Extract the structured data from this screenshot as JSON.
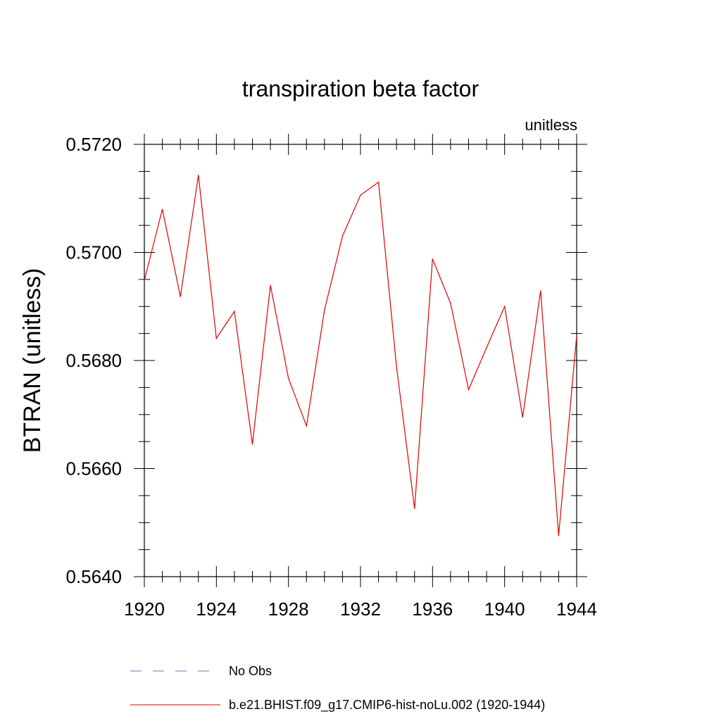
{
  "chart_data": {
    "type": "line",
    "title": "transpiration beta factor",
    "units_label": "unitless",
    "ylabel": "BTRAN  (unitless)",
    "xlabel": "",
    "xlim": [
      1920,
      1944
    ],
    "ylim": [
      0.564,
      0.572
    ],
    "x_ticks": [
      1920,
      1924,
      1928,
      1932,
      1936,
      1940,
      1944
    ],
    "x_tick_labels": [
      "1920",
      "1924",
      "1928",
      "1932",
      "1936",
      "1940",
      "1944"
    ],
    "y_ticks": [
      0.564,
      0.566,
      0.568,
      0.57,
      0.572
    ],
    "y_tick_labels": [
      "0.5640",
      "0.5660",
      "0.5680",
      "0.5700",
      "0.5720"
    ],
    "y_minor_step": 0.0005,
    "x_minor_step": 1,
    "grid": false,
    "legend_position": "bottom",
    "series": [
      {
        "name": "b.e21.BHIST.f09_g17.CMIP6-hist-noLu.002 (1920-1944)",
        "color": "#e00000",
        "style": "solid",
        "x": [
          1920,
          1921,
          1922,
          1923,
          1924,
          1925,
          1926,
          1927,
          1928,
          1929,
          1930,
          1931,
          1932,
          1933,
          1934,
          1935,
          1936,
          1937,
          1938,
          1939,
          1940,
          1941,
          1942,
          1943,
          1944
        ],
        "values": [
          0.56948,
          0.5708,
          0.56918,
          0.57143,
          0.56841,
          0.56891,
          0.56645,
          0.56939,
          0.56767,
          0.56679,
          0.56893,
          0.5703,
          0.57106,
          0.5713,
          0.56788,
          0.56526,
          0.56988,
          0.56906,
          0.56746,
          0.56824,
          0.569,
          0.56695,
          0.56929,
          0.56476,
          0.56846
        ]
      }
    ],
    "legend_entries": [
      {
        "label": "No Obs",
        "color": "#7070b8",
        "style": "dashed"
      },
      {
        "label": "b.e21.BHIST.f09_g17.CMIP6-hist-noLu.002 (1920-1944)",
        "color": "#e00000",
        "style": "solid"
      }
    ]
  }
}
